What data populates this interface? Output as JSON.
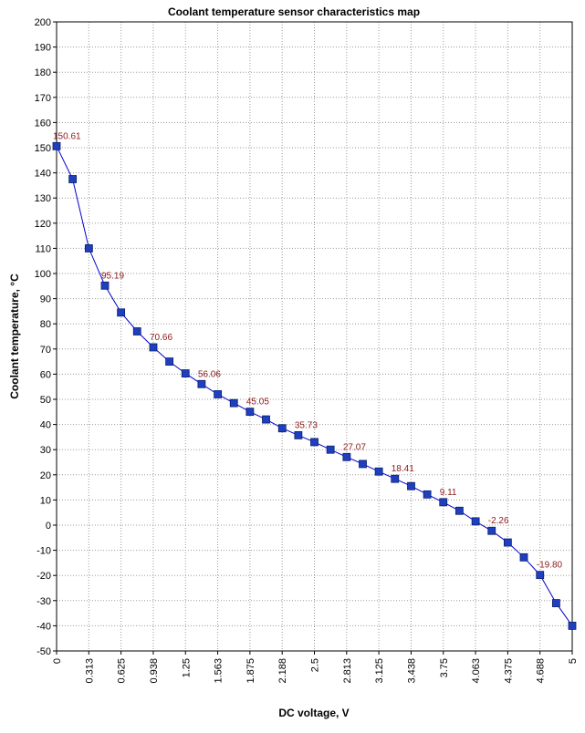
{
  "chart_data": {
    "type": "line",
    "title": "Coolant temperature sensor characteristics map",
    "xlabel": "DC voltage, V",
    "ylabel": "Coolant temperature, °C",
    "xlim": [
      0,
      5
    ],
    "ylim": [
      -50,
      200
    ],
    "x_ticks": [
      "0",
      "0.313",
      "0.625",
      "0.938",
      "1.25",
      "1.563",
      "1.875",
      "2.188",
      "2.5",
      "2.813",
      "3.125",
      "3.438",
      "3.75",
      "4.063",
      "4.375",
      "4.688",
      "5"
    ],
    "y_ticks": [
      200,
      190,
      180,
      170,
      160,
      150,
      140,
      130,
      120,
      110,
      100,
      90,
      80,
      70,
      60,
      50,
      40,
      30,
      20,
      10,
      0,
      -10,
      -20,
      -30,
      -40,
      -50
    ],
    "grid": true,
    "series": [
      {
        "color": "#0000cc",
        "marker_color": "#1f3fbf",
        "x": [
          0,
          0.156,
          0.313,
          0.469,
          0.625,
          0.781,
          0.938,
          1.094,
          1.25,
          1.406,
          1.563,
          1.719,
          1.875,
          2.031,
          2.188,
          2.344,
          2.5,
          2.656,
          2.813,
          2.969,
          3.125,
          3.281,
          3.438,
          3.594,
          3.75,
          3.906,
          4.063,
          4.219,
          4.375,
          4.531,
          4.688,
          4.844,
          5
        ],
        "y": [
          150.61,
          137.5,
          110,
          95.19,
          84.5,
          77,
          70.66,
          65,
          60.3,
          56.06,
          52,
          48.5,
          45.05,
          42,
          38.5,
          35.73,
          33,
          30,
          27.07,
          24.3,
          21.3,
          18.41,
          15.5,
          12.2,
          9.11,
          5.7,
          1.5,
          -2.26,
          -6.9,
          -12.8,
          -19.8,
          -31,
          -40
        ]
      }
    ],
    "data_labels": [
      {
        "index": 0,
        "text": "150.61"
      },
      {
        "index": 3,
        "text": "95.19"
      },
      {
        "index": 6,
        "text": "70.66"
      },
      {
        "index": 9,
        "text": "56.06"
      },
      {
        "index": 12,
        "text": "45.05"
      },
      {
        "index": 15,
        "text": "35.73"
      },
      {
        "index": 18,
        "text": "27.07"
      },
      {
        "index": 21,
        "text": "18.41"
      },
      {
        "index": 24,
        "text": "9.11"
      },
      {
        "index": 27,
        "text": "-2.26"
      },
      {
        "index": 30,
        "text": "-19.80"
      }
    ]
  }
}
